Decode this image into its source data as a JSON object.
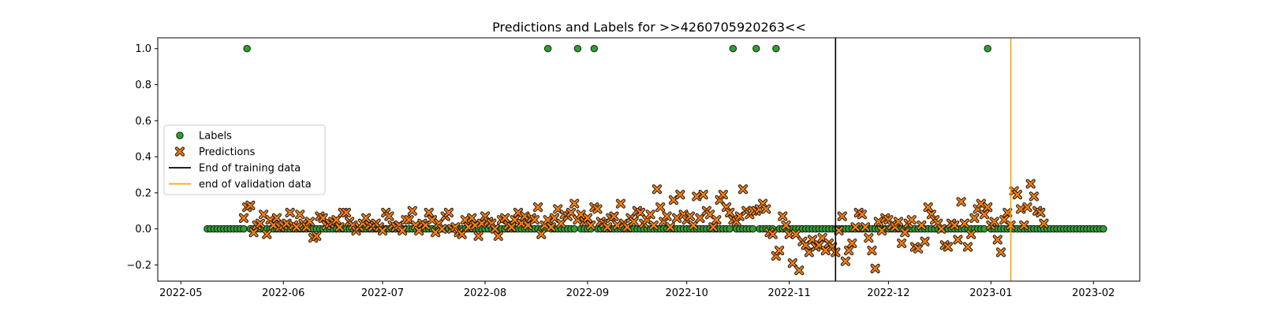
{
  "chart_data": {
    "type": "scatter",
    "title": "Predictions and Labels for >>4260705920263<<",
    "xlabel": "",
    "ylabel": "",
    "x_range": [
      "2022-04-24",
      "2023-02-15"
    ],
    "ylim": [
      -0.29,
      1.06
    ],
    "x_tick_labels": [
      "2022-05",
      "2022-06",
      "2022-07",
      "2022-08",
      "2022-09",
      "2022-10",
      "2022-11",
      "2022-12",
      "2023-01",
      "2023-02"
    ],
    "x_tick_dates": [
      "2022-05-01",
      "2022-06-01",
      "2022-07-01",
      "2022-08-01",
      "2022-09-01",
      "2022-10-01",
      "2022-11-01",
      "2022-12-01",
      "2023-01-01",
      "2023-02-01"
    ],
    "y_ticks": [
      -0.2,
      0.0,
      0.2,
      0.4,
      0.6,
      0.8,
      1.0
    ],
    "y_tick_labels": [
      "−0.2",
      "0.0",
      "0.2",
      "0.4",
      "0.6",
      "0.8",
      "1.0"
    ],
    "grid": false,
    "legend_position": "center-left",
    "series": [
      {
        "name": "Labels",
        "marker": "circle",
        "color": "#2ca02c",
        "date_start": "2022-05-09",
        "date_end": "2023-02-04",
        "default_value": 0,
        "ones": [
          "2022-05-21",
          "2022-08-20",
          "2022-08-29",
          "2022-09-03",
          "2022-10-15",
          "2022-10-22",
          "2022-10-28",
          "2022-12-31"
        ]
      },
      {
        "name": "Predictions",
        "marker": "x",
        "color": "#ff7f0e",
        "date_start": "2022-05-20",
        "date_end": "2023-01-30",
        "values": [
          0.06,
          0.12,
          0.13,
          -0.02,
          0.02,
          0.03,
          0.08,
          -0.03,
          0.05,
          0.02,
          0.06,
          0.01,
          0.02,
          0.03,
          0.09,
          0.02,
          0.01,
          0.08,
          0.03,
          0.01,
          0.04,
          -0.05,
          -0.04,
          0.07,
          0.06,
          0.02,
          0.03,
          0.04,
          0.05,
          0.01,
          0.09,
          0.09,
          0.04,
          0.02,
          -0.01,
          0.01,
          0.03,
          0.06,
          0.02,
          0.01,
          0.03,
          0.01,
          -0.01,
          0.09,
          0.07,
          0.02,
          0.01,
          0.02,
          -0.01,
          0.05,
          0.05,
          0.1,
          0.02,
          -0.01,
          0.03,
          0.02,
          0.09,
          0.05,
          -0.02,
          0.03,
          0.0,
          0.07,
          0.09,
          0.0,
          0.01,
          -0.02,
          -0.03,
          0.05,
          0.01,
          0.06,
          0.02,
          -0.04,
          0.03,
          0.07,
          0.04,
          0.03,
          0.0,
          -0.04,
          0.05,
          0.06,
          0.02,
          0.01,
          0.05,
          0.09,
          0.03,
          0.07,
          0.02,
          0.06,
          0.05,
          0.12,
          -0.03,
          0.02,
          0.05,
          0.01,
          0.06,
          0.11,
          0.03,
          0.08,
          0.07,
          0.09,
          0.14,
          0.05,
          0.08,
          0.04,
          0.06,
          0.02,
          0.12,
          0.11,
          0.04,
          0.03,
          0.01,
          0.06,
          0.07,
          0.02,
          0.14,
          0.03,
          0.01,
          0.06,
          0.04,
          0.1,
          0.09,
          0.03,
          0.05,
          0.08,
          0.02,
          0.22,
          0.12,
          0.04,
          0.07,
          0.01,
          0.16,
          0.06,
          0.19,
          0.08,
          0.05,
          0.07,
          0.02,
          0.18,
          0.06,
          0.19,
          0.1,
          0.08,
          0.01,
          0.05,
          0.16,
          0.19,
          0.12,
          0.09,
          0.05,
          0.04,
          0.07,
          0.22,
          0.1,
          0.08,
          0.1,
          0.1,
          0.11,
          0.14,
          0.11,
          -0.02,
          -0.03,
          -0.15,
          -0.12,
          0.07,
          0.02,
          -0.03,
          -0.19,
          -0.03,
          -0.23,
          -0.07,
          -0.09,
          -0.13,
          -0.06,
          -0.1,
          -0.09,
          -0.05,
          -0.12,
          -0.08,
          -0.1,
          -0.13,
          -0.01,
          0.07,
          -0.18,
          -0.12,
          -0.08,
          0.01,
          0.09,
          0.08,
          0.01,
          -0.05,
          -0.12,
          -0.22,
          0.04,
          -0.01,
          0.06,
          0.05,
          0.02,
          0.01,
          0.04,
          -0.08,
          -0.02,
          0.03,
          0.05,
          -0.1,
          -0.11,
          0.02,
          -0.07,
          0.12,
          0.08,
          0.05,
          0.03,
          0.0,
          -0.09,
          -0.1,
          0.03,
          0.02,
          -0.06,
          0.15,
          0.03,
          -0.1,
          -0.03,
          0.06,
          0.11,
          0.14,
          0.08,
          0.12,
          0.02,
          0.04,
          -0.06,
          -0.13,
          0.05,
          0.09,
          0.02,
          0.21,
          0.19,
          0.11,
          0.02,
          0.12,
          0.25,
          0.18,
          0.1,
          0.09,
          0.03
        ]
      }
    ],
    "vlines": [
      {
        "name": "End of training data",
        "date": "2022-11-15",
        "color": "#000000"
      },
      {
        "name": "end of validation data",
        "date": "2023-01-07",
        "color": "#ffa500"
      }
    ]
  }
}
